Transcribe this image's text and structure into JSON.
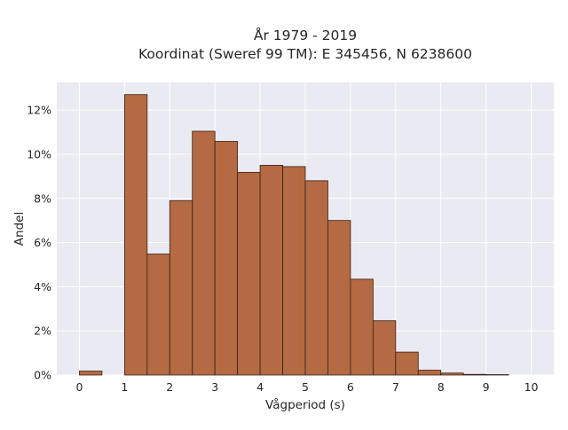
{
  "chart_data": {
    "type": "bar",
    "title_line1": "År 1979 - 2019",
    "title_line2": "Koordinat (Sweref 99 TM): E 345456, N 6238600",
    "xlabel": "Vågperiod (s)",
    "ylabel": "Andel",
    "xlim": [
      -0.5,
      10.5
    ],
    "ylim": [
      0,
      0.1325
    ],
    "x_ticks": [
      0,
      1,
      2,
      3,
      4,
      5,
      6,
      7,
      8,
      9,
      10
    ],
    "x_tick_labels": [
      "0",
      "1",
      "2",
      "3",
      "4",
      "5",
      "6",
      "7",
      "8",
      "9",
      "10"
    ],
    "y_ticks": [
      0,
      0.02,
      0.04,
      0.06,
      0.08,
      0.1,
      0.12
    ],
    "y_tick_labels": [
      "0%",
      "2%",
      "4%",
      "6%",
      "8%",
      "10%",
      "12%"
    ],
    "bin_width": 0.5,
    "bins": [
      {
        "x0": 0.0,
        "value": 0.0018
      },
      {
        "x0": 1.0,
        "value": 0.127
      },
      {
        "x0": 1.5,
        "value": 0.0548
      },
      {
        "x0": 2.0,
        "value": 0.079
      },
      {
        "x0": 2.5,
        "value": 0.1104
      },
      {
        "x0": 3.0,
        "value": 0.1058
      },
      {
        "x0": 3.5,
        "value": 0.0918
      },
      {
        "x0": 4.0,
        "value": 0.095
      },
      {
        "x0": 4.5,
        "value": 0.0944
      },
      {
        "x0": 5.0,
        "value": 0.088
      },
      {
        "x0": 5.5,
        "value": 0.07
      },
      {
        "x0": 6.0,
        "value": 0.0434
      },
      {
        "x0": 6.5,
        "value": 0.0246
      },
      {
        "x0": 7.0,
        "value": 0.0104
      },
      {
        "x0": 7.5,
        "value": 0.0022
      },
      {
        "x0": 8.0,
        "value": 0.0009
      },
      {
        "x0": 8.5,
        "value": 0.0003
      },
      {
        "x0": 9.0,
        "value": 0.0002
      }
    ],
    "grid": true,
    "legend": "none",
    "colors": {
      "bar_fill": "#b46a42",
      "bar_edge": "#3b2016",
      "plot_background": "#eaeaf2",
      "grid": "#ffffff"
    }
  }
}
